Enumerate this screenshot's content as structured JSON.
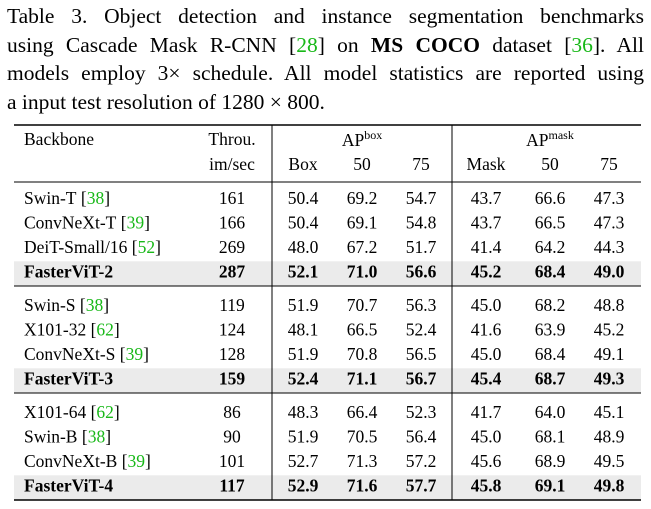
{
  "caption": {
    "lines": [
      [
        "Table 3. Object detection and instance segmentation benchmarks"
      ],
      [
        "using Cascade Mask R-CNN [",
        "28",
        "] on ",
        "MS COCO",
        " dataset [",
        "36",
        "]. All"
      ],
      [
        "models employ 3× schedule. All model statistics are reported using"
      ],
      [
        "a input test resolution of 1280 × 800."
      ]
    ]
  },
  "table": {
    "header": {
      "backbone": "Backbone",
      "throughput": [
        "Throu.",
        "im/sec"
      ],
      "ap_box": {
        "label": "AP",
        "sup": "box"
      },
      "ap_mask": {
        "label": "AP",
        "sup": "mask"
      },
      "columns": [
        "Box",
        "50",
        "75",
        "Mask",
        "50",
        "75"
      ]
    },
    "groups": [
      {
        "rows": [
          {
            "name": "Swin-T",
            "ref": "38",
            "values": [
              "161",
              "50.4",
              "69.2",
              "54.7",
              "43.7",
              "66.6",
              "47.3"
            ]
          },
          {
            "name": "ConvNeXt-T",
            "ref": "39",
            "values": [
              "166",
              "50.4",
              "69.1",
              "54.8",
              "43.7",
              "66.5",
              "47.3"
            ]
          },
          {
            "name": "DeiT-Small/16",
            "ref": "52",
            "values": [
              "269",
              "48.0",
              "67.2",
              "51.7",
              "41.4",
              "64.2",
              "44.3"
            ]
          },
          {
            "name": "FasterViT-2",
            "values": [
              "287",
              "52.1",
              "71.0",
              "56.6",
              "45.2",
              "68.4",
              "49.0"
            ]
          }
        ]
      },
      {
        "rows": [
          {
            "name": "Swin-S",
            "ref": "38",
            "values": [
              "119",
              "51.9",
              "70.7",
              "56.3",
              "45.0",
              "68.2",
              "48.8"
            ]
          },
          {
            "name": "X101-32",
            "ref": "62",
            "values": [
              "124",
              "48.1",
              "66.5",
              "52.4",
              "41.6",
              "63.9",
              "45.2"
            ]
          },
          {
            "name": "ConvNeXt-S",
            "ref": "39",
            "values": [
              "128",
              "51.9",
              "70.8",
              "56.5",
              "45.0",
              "68.4",
              "49.1"
            ]
          },
          {
            "name": "FasterViT-3",
            "values": [
              "159",
              "52.4",
              "71.1",
              "56.7",
              "45.4",
              "68.7",
              "49.3"
            ]
          }
        ]
      },
      {
        "rows": [
          {
            "name": "X101-64",
            "ref": "62",
            "values": [
              "86",
              "48.3",
              "66.4",
              "52.3",
              "41.7",
              "64.0",
              "45.1"
            ]
          },
          {
            "name": "Swin-B",
            "ref": "38",
            "values": [
              "90",
              "51.9",
              "70.5",
              "56.4",
              "45.0",
              "68.1",
              "48.9"
            ]
          },
          {
            "name": "ConvNeXt-B",
            "ref": "39",
            "values": [
              "101",
              "52.7",
              "71.3",
              "57.2",
              "45.6",
              "68.9",
              "49.5"
            ]
          },
          {
            "name": "FasterViT-4",
            "values": [
              "117",
              "52.9",
              "71.6",
              "57.7",
              "45.8",
              "69.1",
              "49.8"
            ]
          }
        ]
      }
    ]
  }
}
